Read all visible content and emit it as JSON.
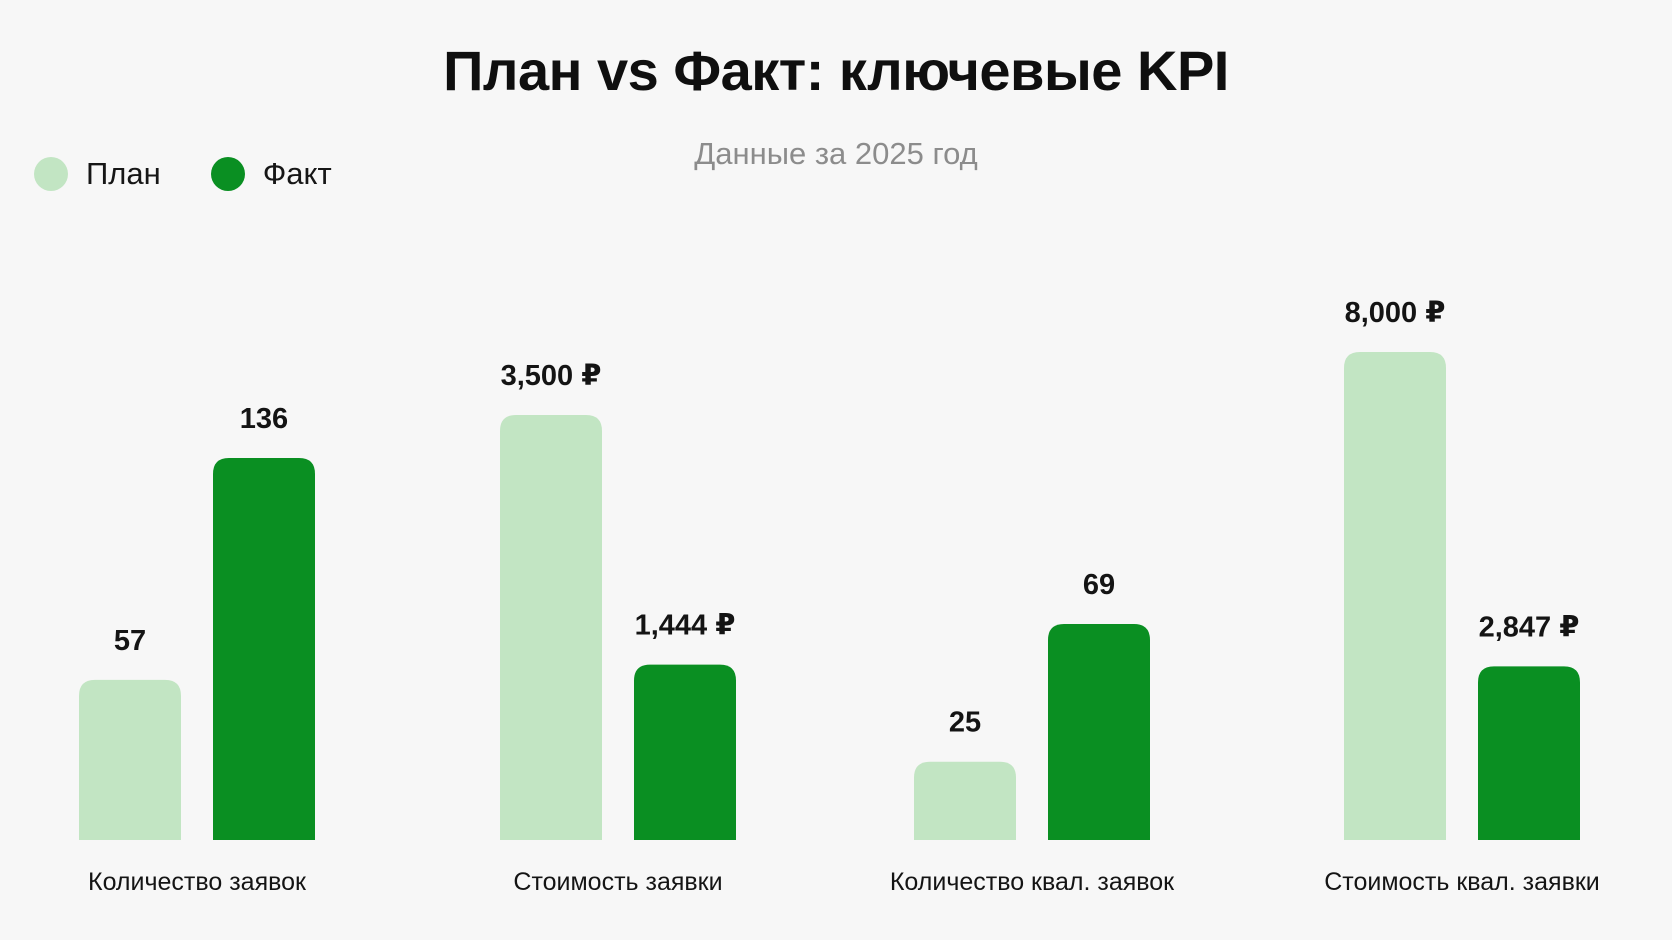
{
  "header": {
    "title": "План vs Факт: ключевые KPI",
    "subtitle": "Данные за 2025 год"
  },
  "legend": {
    "items": [
      {
        "label": "План",
        "color": "#c2e5c3"
      },
      {
        "label": "Факт",
        "color": "#0a8f22"
      }
    ]
  },
  "chart_data": {
    "type": "bar",
    "title": "План vs Факт: ключевые KPI",
    "subtitle": "Данные за 2025 год",
    "categories": [
      "Количество заявок",
      "Стоимость заявки",
      "Количество квал. заявок",
      "Стоимость квал. заявки"
    ],
    "series": [
      {
        "name": "План",
        "color": "#c2e5c3",
        "values": [
          57,
          3500,
          25,
          8000
        ],
        "labels": [
          "57",
          "3,500 ₽",
          "25",
          "8,000 ₽"
        ]
      },
      {
        "name": "Факт",
        "color": "#0a8f22",
        "values": [
          136,
          1444,
          69,
          2847
        ],
        "labels": [
          "136",
          "1,444 ₽",
          "69",
          "2,847 ₽"
        ]
      }
    ],
    "xlabel": "",
    "ylabel": "",
    "grid": false,
    "legend_position": "top-left"
  }
}
